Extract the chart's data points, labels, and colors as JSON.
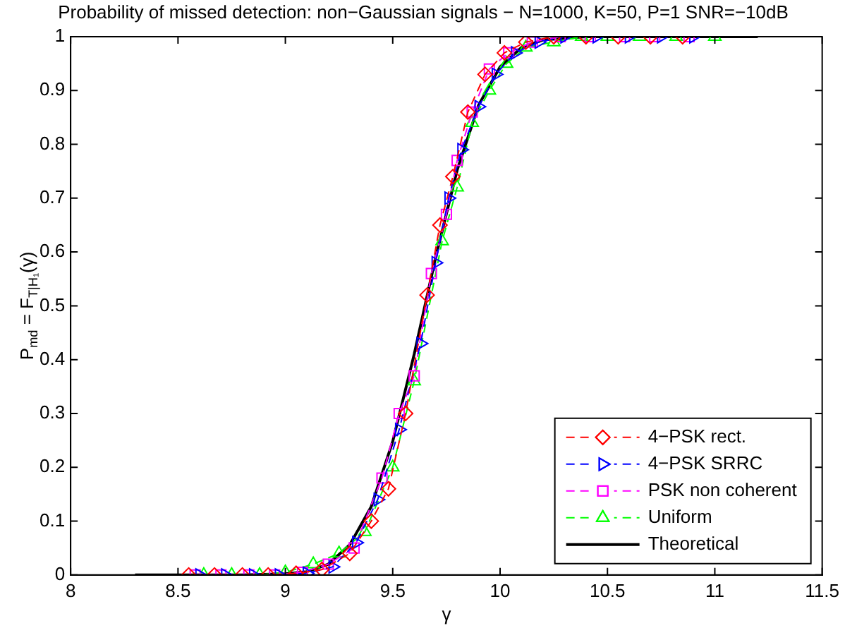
{
  "chart_data": {
    "type": "line",
    "title": "Probability of missed detection: non−Gaussian signals − N=1000, K=50, P=1 SNR=−10dB",
    "xlabel": "γ",
    "ylabel": "P$_{md}$ = F$_{T|H₁}$(γ)",
    "xlim": [
      8,
      11.5
    ],
    "xticks": [
      8,
      8.5,
      9,
      9.5,
      10,
      10.5,
      11,
      11.5
    ],
    "ylim": [
      0,
      1
    ],
    "yticks": [
      0,
      0.1,
      0.2,
      0.3,
      0.4,
      0.5,
      0.6,
      0.7,
      0.8,
      0.9,
      1
    ],
    "grid": false,
    "legend": "bottom right",
    "series": [
      {
        "name": "4−PSK rect.",
        "color": "#ff0000",
        "marker": "diamond",
        "line_style": "dashed",
        "x": [
          8.55,
          8.67,
          8.8,
          8.92,
          9.05,
          9.17,
          9.3,
          9.4,
          9.48,
          9.56,
          9.66,
          9.72,
          9.78,
          9.85,
          9.93,
          10.02,
          10.12,
          10.25,
          10.4,
          10.55,
          10.7,
          10.85
        ],
        "values": [
          0,
          0,
          0,
          0,
          0.003,
          0.01,
          0.04,
          0.1,
          0.16,
          0.3,
          0.52,
          0.65,
          0.74,
          0.86,
          0.93,
          0.97,
          0.99,
          1,
          1,
          1,
          1,
          1
        ]
      },
      {
        "name": "4−PSK SRRC",
        "color": "#0000ff",
        "marker": "triangle-right",
        "line_style": "dashed",
        "x": [
          8.6,
          8.72,
          8.85,
          8.97,
          9.1,
          9.22,
          9.33,
          9.43,
          9.53,
          9.63,
          9.7,
          9.76,
          9.82,
          9.9,
          9.98,
          10.07,
          10.18,
          10.3,
          10.45,
          10.6,
          10.75,
          10.9
        ],
        "values": [
          0,
          0,
          0,
          0,
          0.003,
          0.015,
          0.06,
          0.14,
          0.27,
          0.43,
          0.58,
          0.7,
          0.79,
          0.87,
          0.93,
          0.97,
          0.99,
          1,
          1,
          1,
          1,
          1
        ]
      },
      {
        "name": "PSK non coherent",
        "color": "#ff00ff",
        "marker": "square",
        "line_style": "dashed",
        "x": [
          8.58,
          8.7,
          8.83,
          8.95,
          9.08,
          9.2,
          9.32,
          9.45,
          9.53,
          9.6,
          9.68,
          9.75,
          9.8,
          9.87,
          9.95,
          10.04,
          10.15,
          10.28,
          10.42,
          10.58,
          10.72,
          10.88
        ],
        "values": [
          0,
          0,
          0,
          0,
          0.005,
          0.02,
          0.05,
          0.18,
          0.3,
          0.37,
          0.56,
          0.67,
          0.77,
          0.86,
          0.94,
          0.97,
          0.99,
          1,
          1,
          1,
          1,
          1
        ]
      },
      {
        "name": "Uniform",
        "color": "#00ff00",
        "marker": "triangle",
        "line_style": "dashed",
        "x": [
          8.62,
          8.75,
          8.88,
          9.0,
          9.13,
          9.25,
          9.37,
          9.5,
          9.6,
          9.73,
          9.8,
          9.87,
          9.95,
          10.03,
          10.12,
          10.25,
          10.38,
          10.5,
          10.65,
          10.82,
          11.0
        ],
        "values": [
          0,
          0,
          0,
          0.005,
          0.02,
          0.04,
          0.08,
          0.2,
          0.36,
          0.62,
          0.72,
          0.84,
          0.9,
          0.95,
          0.98,
          0.99,
          1,
          1,
          1,
          1,
          1
        ]
      },
      {
        "name": "Theoretical",
        "color": "#000000",
        "marker": "none",
        "line_style": "solid",
        "x": [
          8.3,
          8.6,
          8.8,
          9.0,
          9.1,
          9.2,
          9.3,
          9.4,
          9.5,
          9.6,
          9.7,
          9.8,
          9.9,
          10.0,
          10.1,
          10.2,
          10.4,
          10.6,
          11.2
        ],
        "values": [
          0,
          0,
          0,
          0.002,
          0.006,
          0.02,
          0.056,
          0.127,
          0.248,
          0.41,
          0.59,
          0.752,
          0.873,
          0.944,
          0.98,
          0.994,
          1,
          1,
          1
        ]
      }
    ]
  }
}
